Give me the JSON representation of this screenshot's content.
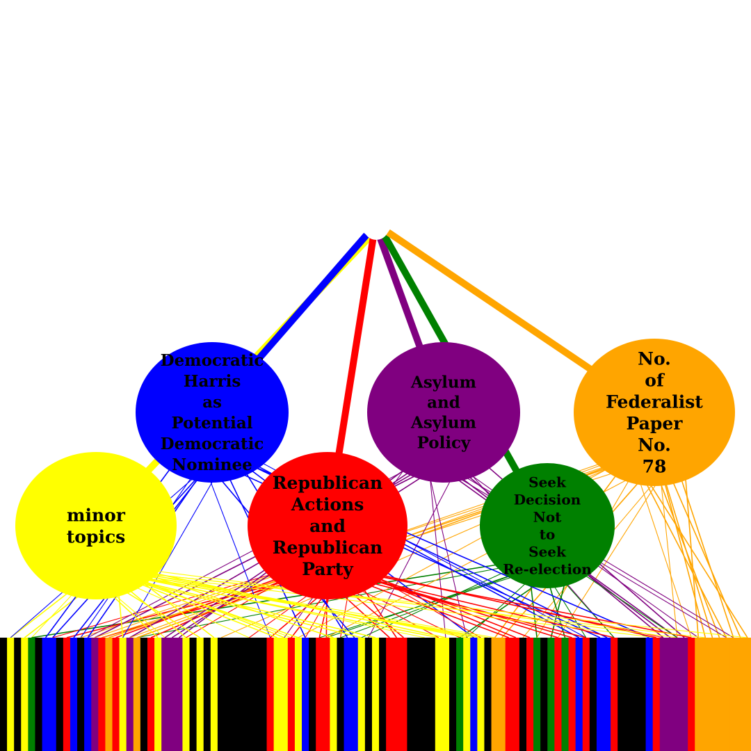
{
  "colors": {
    "yellow": "#ffff00",
    "blue": "#0000ff",
    "red": "#ff0000",
    "purple": "#800080",
    "green": "#008000",
    "orange": "#ffa500",
    "black": "#000000",
    "white": "#ffffff"
  },
  "topics": [
    {
      "id": "minor-topics",
      "label_lines": [
        "minor",
        "topics"
      ],
      "color": "#ffff00"
    },
    {
      "id": "democratic-harris",
      "label_lines": [
        "Democratic",
        "Harris",
        "as",
        "Potential",
        "Democratic",
        "Nominee"
      ],
      "color": "#0000ff"
    },
    {
      "id": "republican-actions",
      "label_lines": [
        "Republican",
        "Actions",
        "and",
        "Republican",
        "Party"
      ],
      "color": "#ff0000"
    },
    {
      "id": "asylum-policy",
      "label_lines": [
        "Asylum",
        "and",
        "Asylum",
        "Policy"
      ],
      "color": "#800080"
    },
    {
      "id": "seek-decision",
      "label_lines": [
        "Seek",
        "Decision",
        "Not",
        "to",
        "Seek",
        "Re-election"
      ],
      "color": "#008000"
    },
    {
      "id": "federalist-paper",
      "label_lines": [
        "No.",
        "of",
        "Federalist",
        "Paper",
        "No.",
        "78"
      ],
      "color": "#ffa500"
    }
  ],
  "document_strip": [
    "black",
    "yellow",
    "black",
    "yellow",
    "green",
    "black",
    "blue",
    "blue",
    "black",
    "red",
    "blue",
    "black",
    "blue",
    "purple",
    "red",
    "orange",
    "red",
    "yellow",
    "purple",
    "orange",
    "black",
    "red",
    "yellow",
    "purple",
    "purple",
    "purple",
    "yellow",
    "black",
    "yellow",
    "black",
    "yellow",
    "black",
    "black",
    "black",
    "black",
    "black",
    "black",
    "black",
    "red",
    "yellow",
    "yellow",
    "red",
    "yellow",
    "blue",
    "black",
    "red",
    "red",
    "yellow",
    "black",
    "blue",
    "blue",
    "yellow",
    "black",
    "yellow",
    "black",
    "red",
    "red",
    "red",
    "black",
    "black",
    "black",
    "black",
    "yellow",
    "yellow",
    "black",
    "green",
    "yellow",
    "blue",
    "yellow",
    "black",
    "orange",
    "orange",
    "red",
    "red",
    "black",
    "red",
    "green",
    "black",
    "green",
    "red",
    "green",
    "red",
    "blue",
    "red",
    "black",
    "blue",
    "blue",
    "red",
    "black",
    "black",
    "black",
    "black",
    "blue",
    "red",
    "purple",
    "purple",
    "purple",
    "purple",
    "red",
    "orange",
    "orange",
    "orange",
    "orange",
    "orange",
    "orange",
    "orange",
    "orange"
  ]
}
